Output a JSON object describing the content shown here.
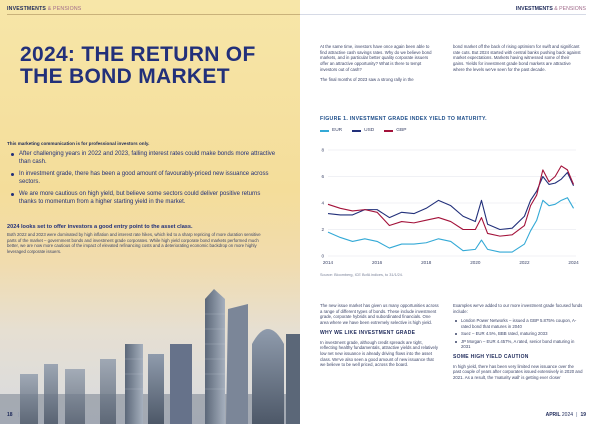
{
  "left_page": {
    "running_head": {
      "section": "INVESTMENTS",
      "sub": "& PENSIONS"
    },
    "title": "2024: THE RETURN OF THE BOND MARKET",
    "disclaimer": "This marketing communication is for professional investors only.",
    "bullets": [
      "After challenging years in 2022 and 2023, falling interest rates could make bonds more attractive than cash.",
      "In investment grade, there has been a good amount of favourably-priced new issuance across sectors.",
      "We are more cautious on high yield, but believe some sectors could deliver positive returns thanks to momentum from a higher starting yield in the market."
    ],
    "lead": "2024 looks set to offer investors a good entry point to the asset class.",
    "body": "Both 2022 and 2023 were dominated by high inflation and interest rate hikes, which led to a sharp repricing of more duration sensitive parts of the market – government bonds and investment grade corporates. While high yield corporate bond markets performed much better, we are now more cautious of the impact of elevated refinancing costs and a deteriorating economic backdrop on more highly leveraged corporate issuers.",
    "folio": {
      "page": "18",
      "mark": "|"
    }
  },
  "right_page": {
    "running_head": {
      "section": "INVESTMENTS",
      "sub": "& PENSIONS"
    },
    "col1": [
      "At the same time, investors have once again been able to find attractive cash savings rates. Why do we believe bond markets, and in particular better quality corporate issuers offer an attractive opportunity? What is there to tempt investors out of cash?",
      "The final months of 2023 saw a strong rally in the"
    ],
    "col2": [
      "bond market off the back of rising optimism for swift and significant rate cuts. But 2024 started with central banks pushing back against market expectations. Markets having witnessed some of their gains. Yields for investment grade bond markets are attractive where the levels we've seen for the past decade."
    ],
    "figure_title": "FIGURE 1. INVESTMENT GRADE INDEX YIELD TO MATURITY.",
    "source": "Source: Bloomberg, ICE BofA indices, to 31/1/24.",
    "col3": {
      "intro": "The new issue market has given us many opportunities across a range of different types of bonds. These include investment grade, corporate hybrids and subordinated financials. One area where we have been extremely selective is high yield.",
      "heading": "WHY WE LIKE INVESTMENT GRADE",
      "body": "In investment grade, although credit spreads are tight, reflecting healthy fundamentals, attractive yields and relatively low net new issuance is already driving flows into the asset class. We've also seen a good amount of new issuance that we believe to be well priced, across the board."
    },
    "col4": {
      "intro": "Examples we've added to our more investment grade focused funds include:",
      "items": [
        "London Power Networks – issued a GBP 5.875% coupon, A- rated bond that matures in 2040",
        "Suez – EUR 4.5%, BBB rated, maturing 2033",
        "JP Morgan – EUR 4.457%, A rated, senior bond maturing in 2031"
      ],
      "heading": "SOME HIGH YIELD CAUTION",
      "body": "In high yield, there has been very limited new issuance over the past couple of years after corporates issued extensively in 2020 and 2021. As a result, the 'maturity wall' is getting ever closer"
    },
    "folio": {
      "month": "APRIL",
      "year": "2024",
      "sep": "|",
      "page": "19"
    }
  },
  "chart_data": {
    "type": "line",
    "title": "FIGURE 1. INVESTMENT GRADE INDEX YIELD TO MATURITY.",
    "xlabel": "",
    "ylabel": "",
    "x_ticks": [
      "2014",
      "2016",
      "2018",
      "2020",
      "2022",
      "2024"
    ],
    "y_ticks": [
      0,
      2,
      4,
      6,
      8
    ],
    "xlim": [
      2014,
      2024.1
    ],
    "ylim": [
      0,
      8
    ],
    "grid": "horizontal",
    "legend_position": "top-left",
    "x": [
      2014.0,
      2014.5,
      2015.0,
      2015.5,
      2016.0,
      2016.5,
      2017.0,
      2017.5,
      2018.0,
      2018.5,
      2019.0,
      2019.5,
      2020.0,
      2020.25,
      2020.5,
      2021.0,
      2021.5,
      2022.0,
      2022.25,
      2022.5,
      2022.75,
      2023.0,
      2023.25,
      2023.5,
      2023.75,
      2024.0
    ],
    "series": [
      {
        "name": "EUR",
        "color": "#33a9d6",
        "values": [
          1.8,
          1.4,
          1.1,
          1.3,
          1.1,
          0.6,
          0.9,
          0.9,
          1.0,
          1.3,
          1.1,
          0.4,
          0.5,
          1.2,
          0.5,
          0.3,
          0.3,
          0.9,
          1.9,
          2.7,
          4.2,
          3.8,
          3.9,
          4.2,
          4.4,
          3.6
        ]
      },
      {
        "name": "USD",
        "color": "#22307a",
        "values": [
          3.2,
          3.1,
          3.1,
          3.5,
          3.5,
          2.9,
          3.3,
          3.2,
          3.6,
          4.2,
          3.8,
          3.0,
          2.6,
          4.2,
          2.4,
          2.0,
          2.1,
          3.0,
          4.2,
          4.9,
          6.0,
          5.4,
          5.5,
          5.8,
          6.3,
          5.3
        ]
      },
      {
        "name": "GBP",
        "color": "#a3123a",
        "values": [
          3.9,
          3.6,
          3.4,
          3.5,
          3.3,
          2.3,
          2.6,
          2.5,
          2.7,
          2.9,
          2.6,
          2.0,
          2.0,
          2.9,
          1.7,
          1.5,
          1.6,
          2.3,
          3.8,
          4.6,
          6.5,
          5.6,
          6.0,
          6.8,
          6.5,
          5.4
        ]
      }
    ]
  }
}
